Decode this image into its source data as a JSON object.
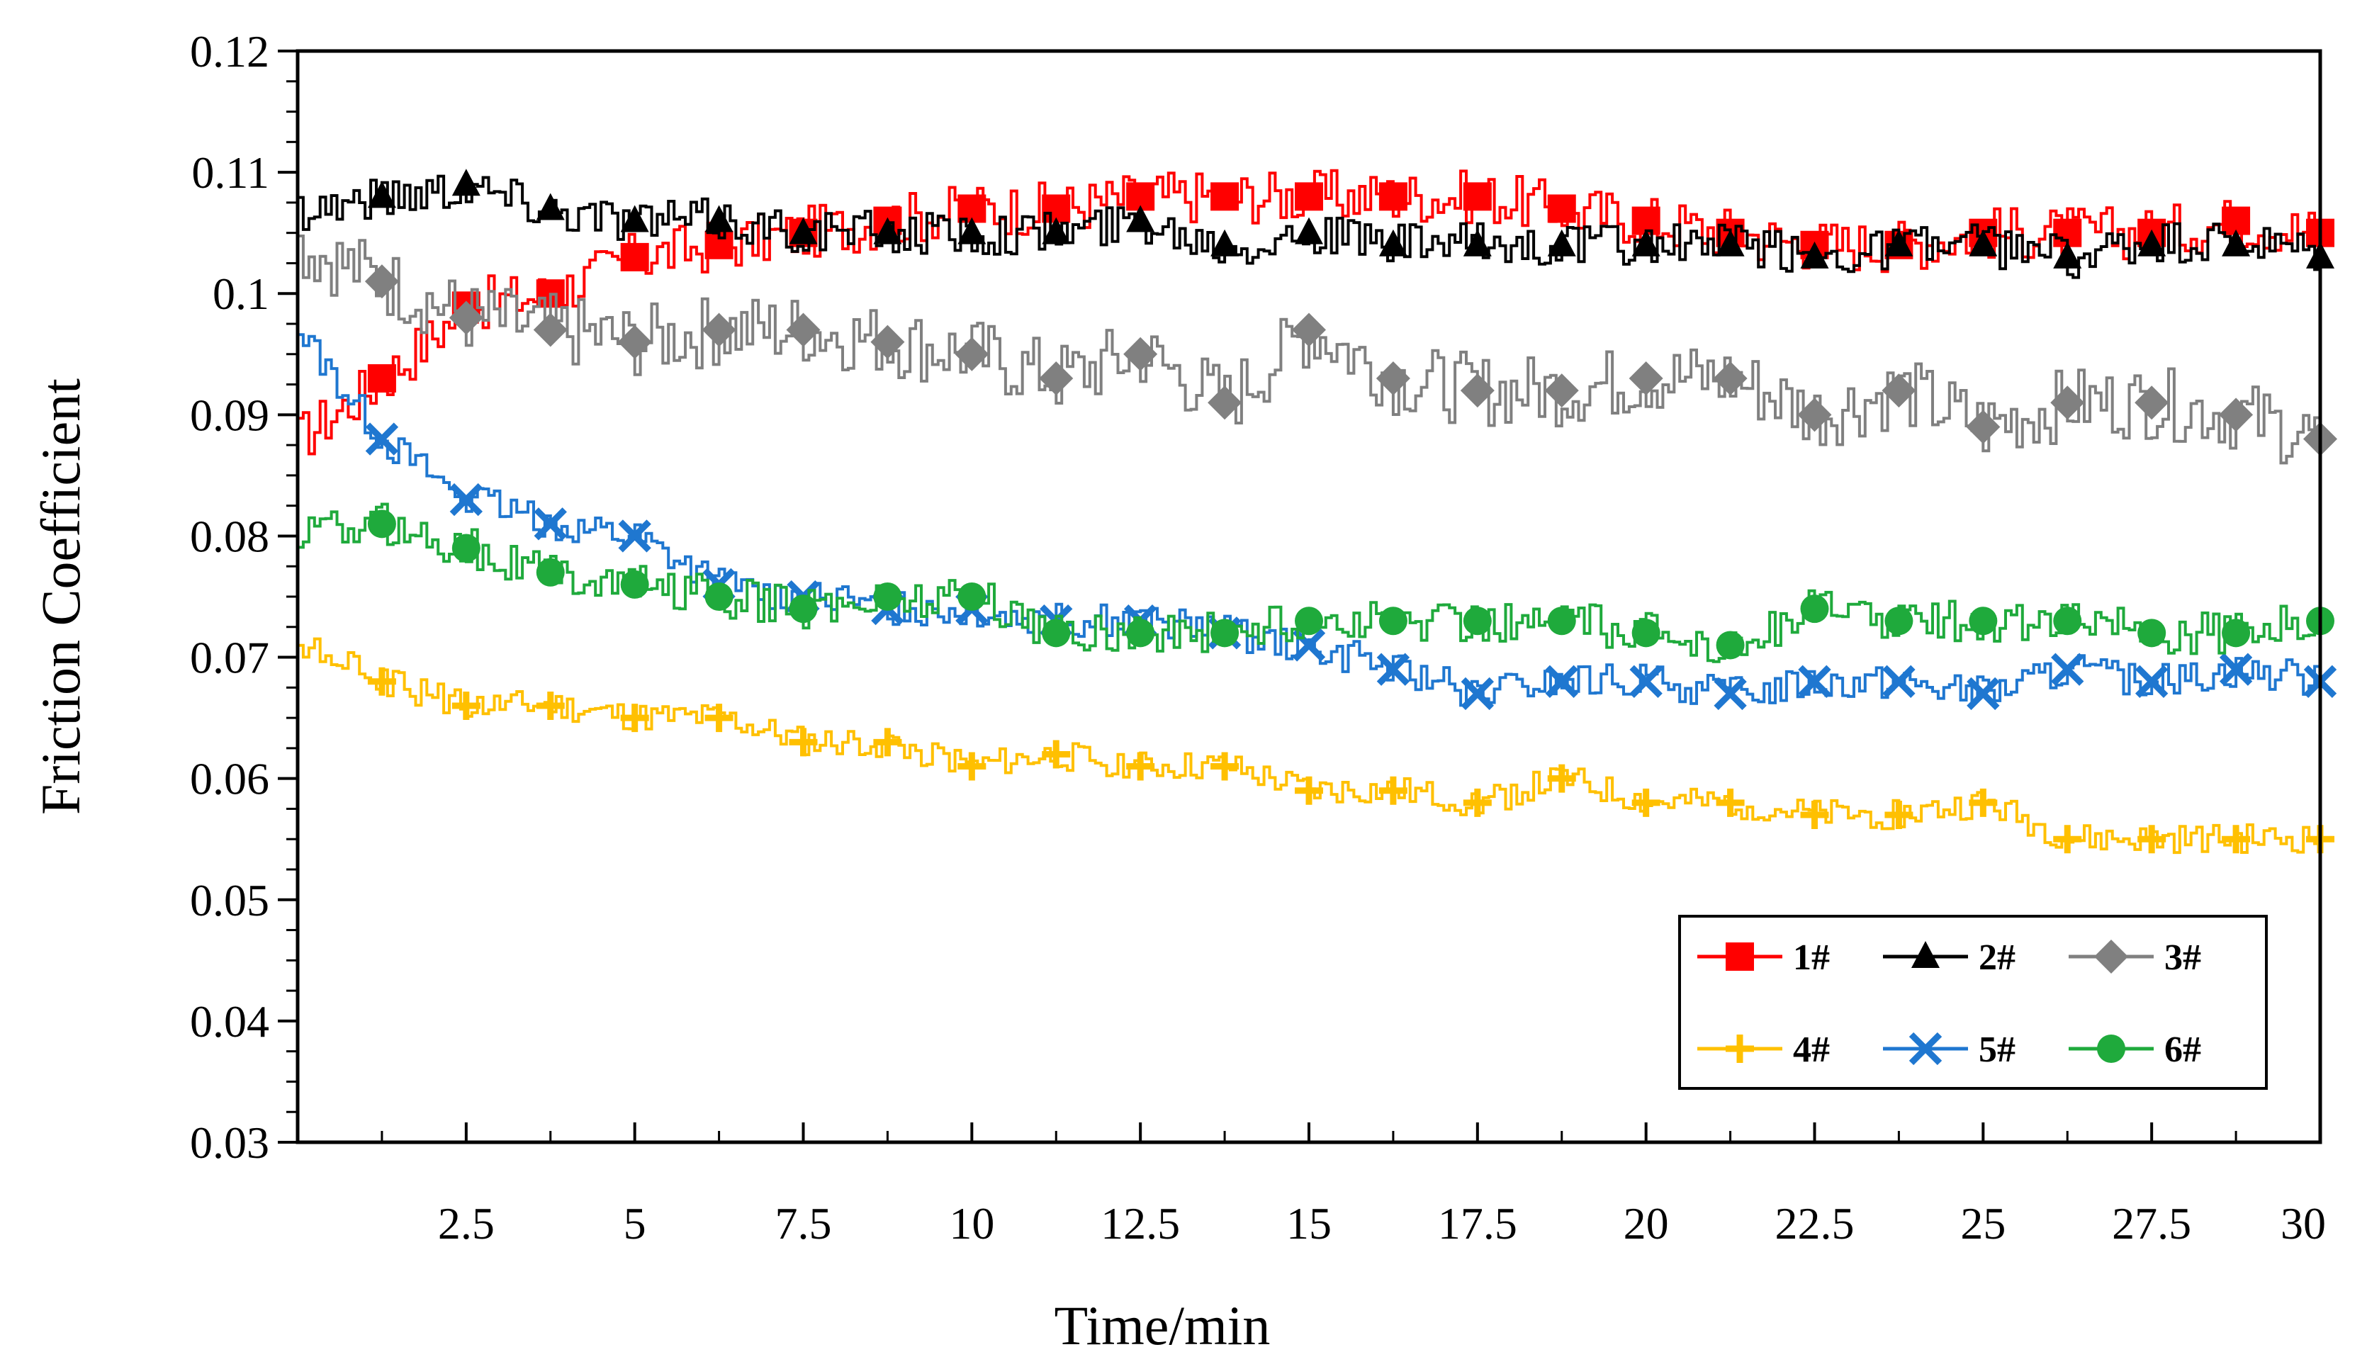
{
  "chart_data": {
    "type": "line",
    "title": "",
    "xlabel": "Time/min",
    "ylabel": "Friction Coefficient",
    "xlim": [
      0,
      30
    ],
    "ylim": [
      0.03,
      0.12
    ],
    "x_ticks": [
      "2.5",
      "5",
      "7.5",
      "10",
      "12.5",
      "15",
      "17.5",
      "20",
      "22.5",
      "25",
      "27.5",
      "30"
    ],
    "y_ticks": [
      "0.03",
      "0.04",
      "0.05",
      "0.06",
      "0.07",
      "0.08",
      "0.09",
      "0.1",
      "0.11",
      "0.12"
    ],
    "grid": false,
    "legend_position": "bottom-right",
    "x": [
      0,
      1.25,
      2.5,
      3.75,
      5,
      6.25,
      7.5,
      8.75,
      10,
      11.25,
      12.5,
      13.75,
      15,
      16.25,
      17.5,
      18.75,
      20,
      21.25,
      22.5,
      23.75,
      25,
      26.25,
      27.5,
      28.75,
      30
    ],
    "series": [
      {
        "name": "1#",
        "color": "#ff0000",
        "marker": "square",
        "values": [
          0.088,
          0.093,
          0.099,
          0.1,
          0.103,
          0.104,
          0.105,
          0.106,
          0.107,
          0.107,
          0.108,
          0.108,
          0.108,
          0.108,
          0.108,
          0.107,
          0.106,
          0.105,
          0.104,
          0.104,
          0.105,
          0.105,
          0.105,
          0.106,
          0.105
        ]
      },
      {
        "name": "2#",
        "color": "#000000",
        "marker": "triangle",
        "values": [
          0.107,
          0.108,
          0.109,
          0.107,
          0.106,
          0.106,
          0.105,
          0.105,
          0.105,
          0.105,
          0.106,
          0.104,
          0.105,
          0.104,
          0.104,
          0.104,
          0.104,
          0.104,
          0.103,
          0.104,
          0.104,
          0.103,
          0.104,
          0.104,
          0.103
        ]
      },
      {
        "name": "3#",
        "color": "#808080",
        "marker": "diamond",
        "values": [
          0.104,
          0.101,
          0.098,
          0.097,
          0.096,
          0.097,
          0.097,
          0.096,
          0.095,
          0.093,
          0.095,
          0.091,
          0.097,
          0.093,
          0.092,
          0.092,
          0.093,
          0.093,
          0.09,
          0.092,
          0.089,
          0.091,
          0.091,
          0.09,
          0.088
        ]
      },
      {
        "name": "4#",
        "color": "#ffc000",
        "marker": "plus",
        "values": [
          0.071,
          0.068,
          0.066,
          0.066,
          0.065,
          0.065,
          0.063,
          0.063,
          0.061,
          0.062,
          0.061,
          0.061,
          0.059,
          0.059,
          0.058,
          0.06,
          0.058,
          0.058,
          0.057,
          0.057,
          0.058,
          0.055,
          0.055,
          0.055,
          0.055
        ]
      },
      {
        "name": "5#",
        "color": "#1f77d0",
        "marker": "x",
        "values": [
          0.097,
          0.088,
          0.083,
          0.081,
          0.08,
          0.076,
          0.075,
          0.074,
          0.074,
          0.073,
          0.073,
          0.072,
          0.071,
          0.069,
          0.067,
          0.068,
          0.068,
          0.067,
          0.068,
          0.068,
          0.067,
          0.069,
          0.068,
          0.069,
          0.068
        ]
      },
      {
        "name": "6#",
        "color": "#1faa3c",
        "marker": "circle",
        "values": [
          0.08,
          0.081,
          0.079,
          0.077,
          0.076,
          0.075,
          0.074,
          0.075,
          0.075,
          0.072,
          0.072,
          0.072,
          0.073,
          0.073,
          0.073,
          0.073,
          0.072,
          0.071,
          0.074,
          0.073,
          0.073,
          0.073,
          0.072,
          0.072,
          0.073
        ]
      }
    ]
  }
}
